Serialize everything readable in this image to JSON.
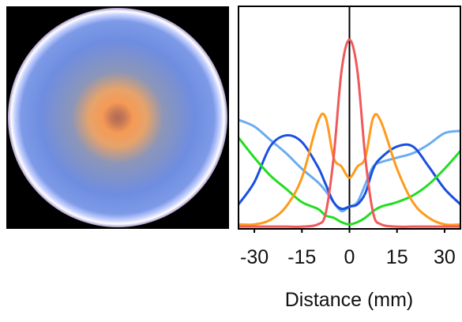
{
  "chart_data": {
    "type": "line",
    "x_label": "Distance (mm)",
    "x": [
      -35,
      -30,
      -25,
      -20,
      -15,
      -10,
      -7.5,
      -5,
      -2.5,
      0,
      2.5,
      5,
      7.5,
      10,
      15,
      20,
      25,
      30,
      35
    ],
    "xlim": [
      -35,
      35
    ],
    "xticks": [
      -30,
      -15,
      0,
      15,
      30
    ],
    "ylim": [
      0,
      1
    ],
    "series": [
      {
        "color": "#6aacf0",
        "values": [
          0.49,
          0.46,
          0.4,
          0.34,
          0.27,
          0.21,
          0.17,
          0.12,
          0.08,
          0.1,
          0.12,
          0.2,
          0.28,
          0.3,
          0.32,
          0.34,
          0.38,
          0.43,
          0.44
        ]
      },
      {
        "color": "#1a4fe0",
        "values": [
          0.11,
          0.21,
          0.37,
          0.42,
          0.39,
          0.28,
          0.2,
          0.12,
          0.09,
          0.1,
          0.11,
          0.16,
          0.27,
          0.32,
          0.37,
          0.37,
          0.28,
          0.18,
          0.11
        ]
      },
      {
        "color": "#22dd22",
        "values": [
          0.41,
          0.32,
          0.24,
          0.18,
          0.12,
          0.09,
          0.06,
          0.05,
          0.03,
          0.02,
          0.03,
          0.05,
          0.08,
          0.1,
          0.12,
          0.15,
          0.2,
          0.27,
          0.35
        ]
      },
      {
        "color": "#ff9a1a",
        "values": [
          0.02,
          0.02,
          0.04,
          0.1,
          0.23,
          0.48,
          0.5,
          0.32,
          0.28,
          0.23,
          0.28,
          0.32,
          0.5,
          0.48,
          0.27,
          0.12,
          0.05,
          0.02,
          0.02
        ]
      },
      {
        "color": "#f0595a",
        "values": [
          0.01,
          0.01,
          0.01,
          0.01,
          0.01,
          0.02,
          0.07,
          0.32,
          0.71,
          0.85,
          0.71,
          0.32,
          0.07,
          0.02,
          0.01,
          0.01,
          0.01,
          0.01,
          0.01
        ]
      }
    ]
  }
}
